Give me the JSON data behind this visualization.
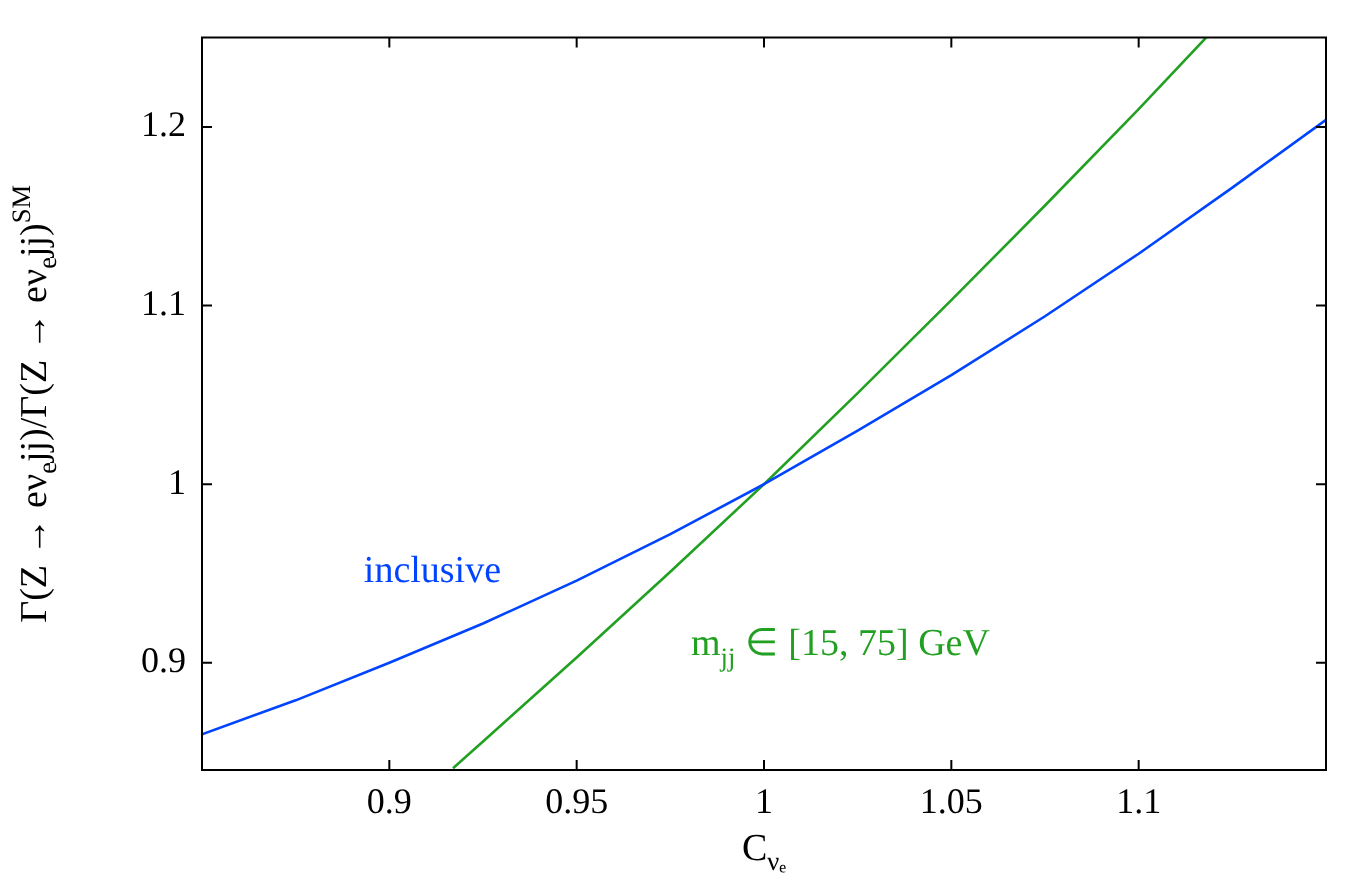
{
  "chart_data": {
    "type": "line",
    "xlabel": "C$_{νₑ}$",
    "ylabel": "Γ(Z → eν$_{e}$jj)/Γ(Z → eν$_{e}$jj)$^{SM}$",
    "series": [
      {
        "color": "#0044ff",
        "x": [
          0.85,
          0.875,
          0.9,
          0.925,
          0.95,
          0.975,
          1,
          1.025,
          1.05,
          1.075,
          1.1,
          1.125,
          1.15
        ],
        "values": [
          0.86,
          0.879,
          0.9,
          0.922,
          0.946,
          0.972,
          1,
          1.03,
          1.061,
          1.094,
          1.129,
          1.166,
          1.204
        ]
      },
      {
        "color": "#22a022",
        "x": [
          0.917,
          0.925,
          0.95,
          0.975,
          1,
          1.025,
          1.05,
          1.075,
          1.1,
          1.118
        ],
        "values": [
          0.841,
          0.856,
          0.903,
          0.951,
          1,
          1.051,
          1.103,
          1.156,
          1.21,
          1.25
        ]
      }
    ],
    "annotations": [
      "inclusive",
      "m$_{jj}$ ∈ [15, 75] GeV"
    ],
    "xlim": [
      0.85,
      1.15
    ],
    "xticks": [
      0.9,
      0.95,
      1,
      1.05,
      1.1
    ],
    "ylim": [
      0.84,
      1.25
    ],
    "yticks": [
      0.9,
      1,
      1.1,
      1.2
    ],
    "grid": false,
    "legend": false,
    "marker": "none",
    "line_style": "solid"
  }
}
